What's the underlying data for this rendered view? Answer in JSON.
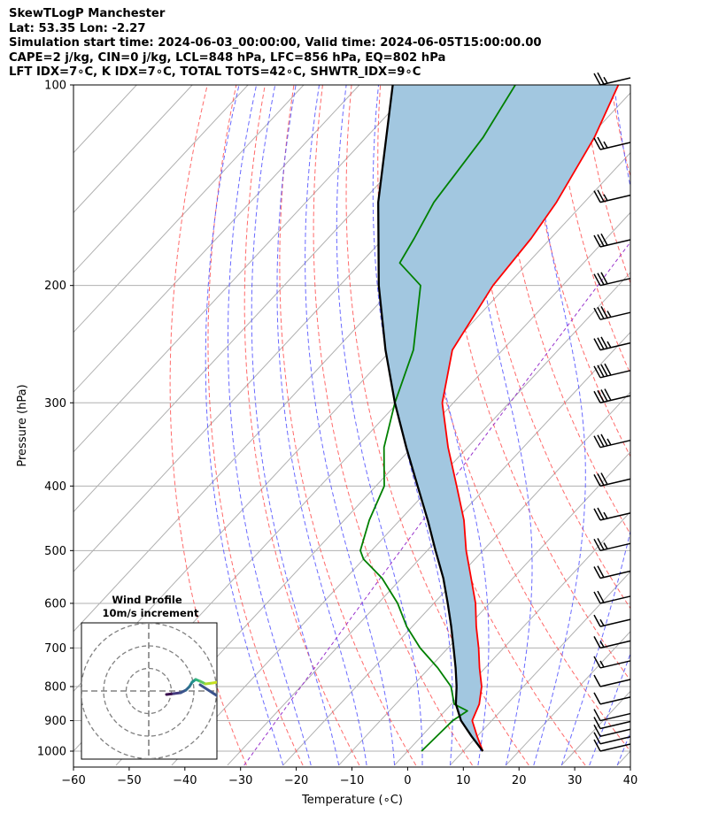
{
  "header": {
    "title": "SkewTLogP Manchester",
    "location": "Lat: 53.35   Lon: -2.27",
    "times": "Simulation start time: 2024-06-03_00:00:00, Valid time: 2024-06-05T15:00:00.00",
    "params": "CAPE=2 j/kg, CIN=0 j/kg, LCL=848 hPa, LFC=856 hPa, EQ=802 hPa",
    "indices": "LFT IDX=7∘C, K IDX=7∘C, TOTAL TOTS=42∘C, SHWTR_IDX=9∘C"
  },
  "chart_data": {
    "type": "line",
    "skew_t": true,
    "xlabel": "Temperature (∘C)",
    "ylabel": "Pressure (hPa)",
    "xlim": [
      -60,
      40
    ],
    "ylim": [
      1050,
      100
    ],
    "y_scale": "log",
    "x_ticks": [
      -60,
      -50,
      -40,
      -30,
      -20,
      -10,
      0,
      10,
      20,
      30,
      40
    ],
    "x_tick_labels": [
      "−60",
      "−50",
      "−40",
      "−30",
      "−20",
      "−10",
      "0",
      "10",
      "20",
      "30",
      "40"
    ],
    "y_ticks": [
      1000,
      900,
      800,
      700,
      600,
      500,
      400,
      300,
      200,
      100
    ],
    "grid": true,
    "series": [
      {
        "name": "temperature",
        "color": "#ff0000",
        "points": [
          [
            1000,
            13.5
          ],
          [
            950,
            10.0
          ],
          [
            900,
            6.5
          ],
          [
            850,
            5.0
          ],
          [
            800,
            2.5
          ],
          [
            750,
            -1.0
          ],
          [
            700,
            -4.5
          ],
          [
            650,
            -8.5
          ],
          [
            600,
            -12.5
          ],
          [
            550,
            -17.5
          ],
          [
            500,
            -23.0
          ],
          [
            450,
            -28.5
          ],
          [
            400,
            -35.5
          ],
          [
            350,
            -43.5
          ],
          [
            300,
            -52.0
          ],
          [
            250,
            -59.0
          ],
          [
            200,
            -62.5
          ],
          [
            170,
            -63.5
          ],
          [
            150,
            -65.0
          ],
          [
            120,
            -69.0
          ],
          [
            100,
            -73.5
          ]
        ]
      },
      {
        "name": "dewpoint",
        "color": "#008000",
        "points": [
          [
            1000,
            2.5
          ],
          [
            900,
            3.0
          ],
          [
            870,
            4.0
          ],
          [
            850,
            0.5
          ],
          [
            800,
            -3.0
          ],
          [
            750,
            -8.5
          ],
          [
            700,
            -15.0
          ],
          [
            650,
            -21.0
          ],
          [
            600,
            -26.5
          ],
          [
            550,
            -33.5
          ],
          [
            515,
            -40.0
          ],
          [
            500,
            -42.0
          ],
          [
            450,
            -45.5
          ],
          [
            400,
            -48.5
          ],
          [
            350,
            -55.0
          ],
          [
            300,
            -60.5
          ],
          [
            250,
            -66.0
          ],
          [
            200,
            -75.5
          ],
          [
            185,
            -83.0
          ],
          [
            170,
            -84.5
          ],
          [
            150,
            -87.0
          ],
          [
            120,
            -89.0
          ],
          [
            100,
            -92.0
          ]
        ]
      },
      {
        "name": "parcel",
        "color": "#000000",
        "points": [
          [
            1000,
            13.5
          ],
          [
            950,
            9.0
          ],
          [
            900,
            4.5
          ],
          [
            850,
            0.8
          ],
          [
            800,
            -2.0
          ],
          [
            750,
            -5.3
          ],
          [
            700,
            -9.0
          ],
          [
            650,
            -13.0
          ],
          [
            600,
            -17.5
          ],
          [
            550,
            -22.5
          ],
          [
            500,
            -28.5
          ],
          [
            450,
            -35.0
          ],
          [
            400,
            -42.5
          ],
          [
            350,
            -51.0
          ],
          [
            300,
            -60.5
          ],
          [
            250,
            -71.0
          ],
          [
            200,
            -83.0
          ],
          [
            150,
            -97.0
          ],
          [
            100,
            -114.0
          ]
        ]
      }
    ],
    "fill_between": {
      "series": [
        "temperature",
        "parcel"
      ],
      "color": "#a2c7e0"
    },
    "wind_barbs_pressures": [
      1000,
      975,
      950,
      925,
      900,
      850,
      800,
      750,
      700,
      650,
      600,
      550,
      500,
      450,
      400,
      350,
      300,
      275,
      250,
      225,
      200,
      175,
      150,
      125,
      100
    ],
    "wind_barbs_speed_kt": [
      10,
      10,
      10,
      10,
      10,
      10,
      10,
      15,
      15,
      15,
      20,
      20,
      25,
      25,
      30,
      35,
      40,
      40,
      35,
      35,
      30,
      30,
      25,
      25,
      25
    ],
    "inset": {
      "title": "Wind Profile",
      "subtitle": "10m/s increment",
      "rings_ms": [
        10,
        20,
        30
      ]
    }
  }
}
